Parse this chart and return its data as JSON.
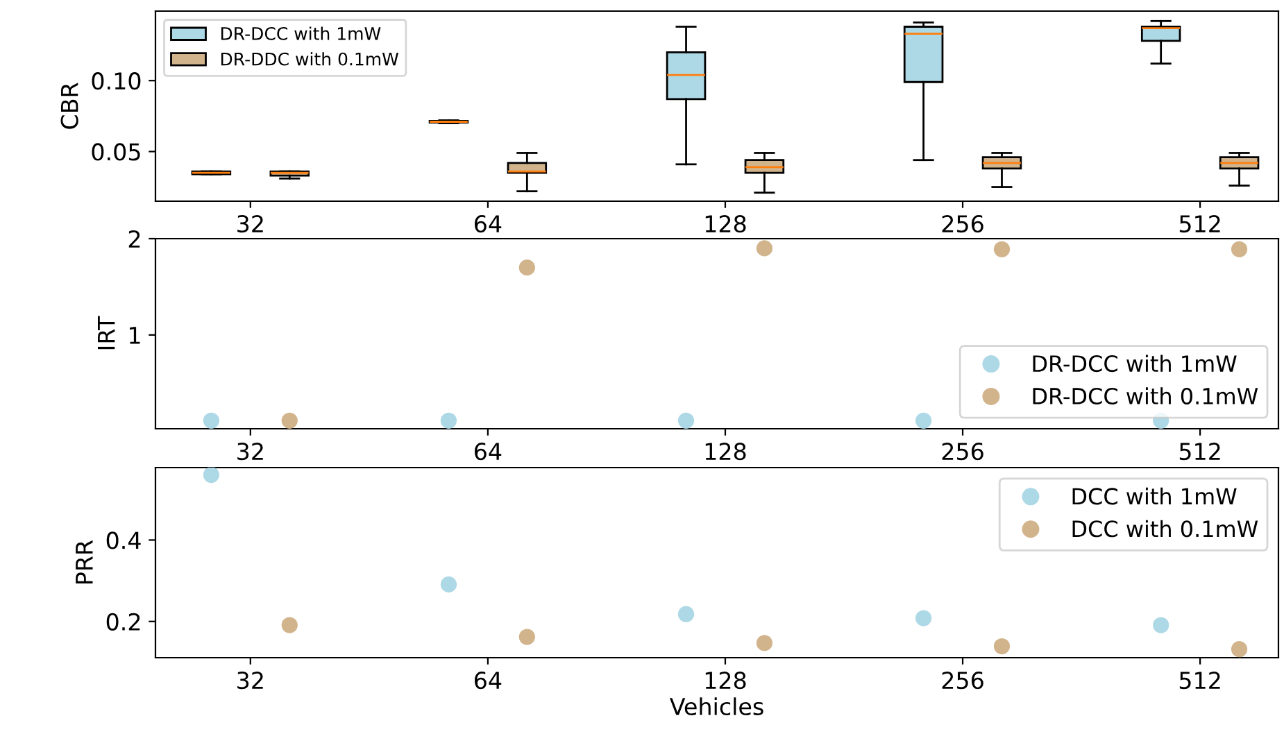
{
  "chart_data": [
    {
      "type": "box",
      "ylabel": "CBR",
      "categories": [
        "32",
        "64",
        "128",
        "256",
        "512"
      ],
      "ylim": [
        0.015,
        0.149
      ],
      "yticks": [
        0.05,
        {
          "value": 0.1,
          "label": "0.10"
        }
      ],
      "legend": "top left",
      "grid": false,
      "series": [
        {
          "name": "DR-DCC with 1mW",
          "color": "#add8e6",
          "boxes": [
            {
              "low": 0.034,
              "q1": 0.034,
              "median": 0.035,
              "q3": 0.036,
              "high": 0.036
            },
            {
              "low": 0.07,
              "q1": 0.0705,
              "median": 0.071,
              "q3": 0.0715,
              "high": 0.072
            },
            {
              "low": 0.041,
              "q1": 0.087,
              "median": 0.104,
              "q3": 0.12,
              "high": 0.138
            },
            {
              "low": 0.044,
              "q1": 0.099,
              "median": 0.133,
              "q3": 0.138,
              "high": 0.141
            },
            {
              "low": 0.112,
              "q1": 0.128,
              "median": 0.137,
              "q3": 0.138,
              "high": 0.142
            }
          ]
        },
        {
          "name": "DR-DDC with 0.1mW",
          "color": "#d2b48c",
          "boxes": [
            {
              "low": 0.031,
              "q1": 0.033,
              "median": 0.035,
              "q3": 0.036,
              "high": 0.036
            },
            {
              "low": 0.022,
              "q1": 0.035,
              "median": 0.036,
              "q3": 0.042,
              "high": 0.049
            },
            {
              "low": 0.021,
              "q1": 0.035,
              "median": 0.039,
              "q3": 0.044,
              "high": 0.049
            },
            {
              "low": 0.025,
              "q1": 0.038,
              "median": 0.042,
              "q3": 0.046,
              "high": 0.049
            },
            {
              "low": 0.026,
              "q1": 0.038,
              "median": 0.042,
              "q3": 0.046,
              "high": 0.049
            }
          ]
        }
      ]
    },
    {
      "type": "scatter",
      "ylabel": "IRT",
      "categories": [
        "32",
        "64",
        "128",
        "256",
        "512"
      ],
      "ylim": [
        0.026,
        2
      ],
      "yticks": [
        1,
        2
      ],
      "legend": "bottom right",
      "grid": false,
      "marker": "circle",
      "series": [
        {
          "name": "DR-DCC with 1mW",
          "color": "#add8e6",
          "values": [
            0.11,
            0.11,
            0.11,
            0.11,
            0.11
          ]
        },
        {
          "name": "DR-DCC with 0.1mW",
          "color": "#d2b48c",
          "values": [
            0.11,
            1.7,
            1.9,
            1.89,
            1.89
          ]
        }
      ]
    },
    {
      "type": "scatter",
      "ylabel": "PRR",
      "xlabel": "Vehicles",
      "categories": [
        "32",
        "64",
        "128",
        "256",
        "512"
      ],
      "ylim": [
        0.111,
        0.578
      ],
      "yticks": [
        0.2,
        0.4
      ],
      "legend": "top right",
      "grid": false,
      "marker": "circle",
      "series": [
        {
          "name": "DCC with 1mW",
          "color": "#add8e6",
          "values": [
            0.56,
            0.291,
            0.218,
            0.208,
            0.191
          ]
        },
        {
          "name": "DCC with 0.1mW",
          "color": "#d2b48c",
          "values": [
            0.191,
            0.162,
            0.147,
            0.139,
            0.132
          ]
        }
      ]
    }
  ]
}
